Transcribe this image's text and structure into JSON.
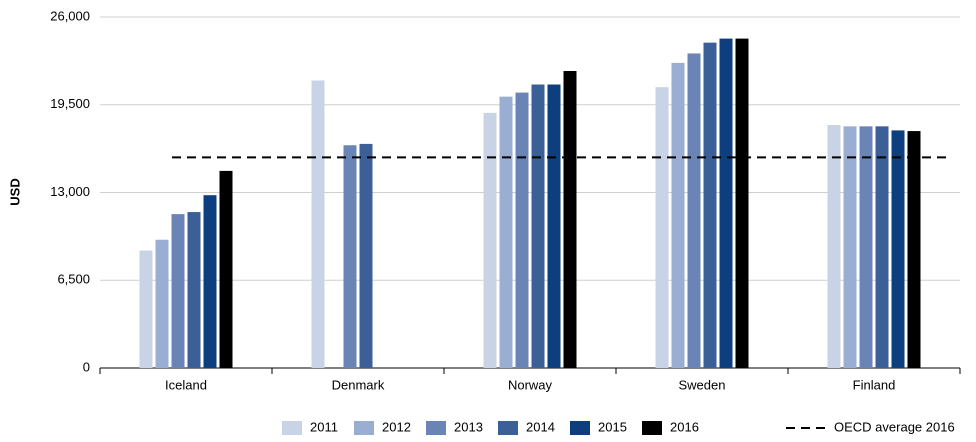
{
  "chart_data": {
    "type": "bar",
    "y_label": "USD",
    "categories": [
      "Iceland",
      "Denmark",
      "Norway",
      "Sweden",
      "Finland"
    ],
    "series": [
      {
        "name": "2011",
        "color": "#c9d3e6",
        "values": [
          8700,
          21300,
          18900,
          20800,
          18000
        ]
      },
      {
        "name": "2012",
        "color": "#9aaed3",
        "values": [
          9500,
          null,
          20100,
          22600,
          17900
        ]
      },
      {
        "name": "2013",
        "color": "#6a84b5",
        "values": [
          11400,
          16500,
          20400,
          23300,
          17900
        ]
      },
      {
        "name": "2014",
        "color": "#3b5f97",
        "values": [
          11550,
          16600,
          21000,
          24100,
          17900
        ]
      },
      {
        "name": "2015",
        "color": "#0d3f7f",
        "values": [
          12800,
          null,
          21000,
          24400,
          17600
        ]
      },
      {
        "name": "2016",
        "color": "#000000",
        "values": [
          14600,
          null,
          22000,
          24400,
          17550
        ]
      }
    ],
    "reference_line": {
      "name": "OECD average 2016",
      "value": 15600,
      "color": "#000000"
    },
    "ylim": [
      0,
      26000
    ],
    "yticks": [
      0,
      {
        "value": 6500,
        "label": "6,500"
      },
      {
        "value": 13000,
        "label": "13,000"
      },
      {
        "value": 19500,
        "label": "19,500"
      },
      {
        "value": 26000,
        "label": "26,000"
      }
    ],
    "grid": true
  }
}
